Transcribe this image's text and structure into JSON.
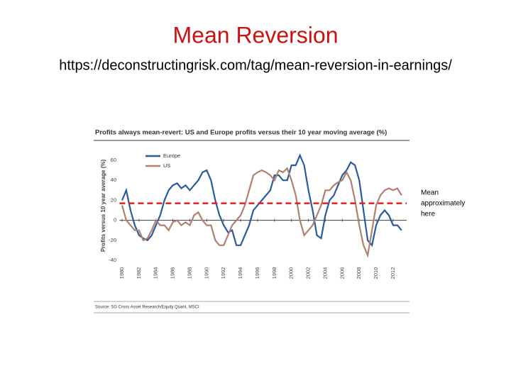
{
  "slide": {
    "title": "Mean Reversion",
    "url": "https://deconstructingrisk.com/tag/mean-reversion-in-earnings/",
    "annotation": [
      "Mean",
      "approximately",
      "here"
    ]
  },
  "chart_data": {
    "type": "line",
    "title": "Profits always mean-revert: US and Europe profits versus their 10 year moving average (%)",
    "y_label": "Profits versus 10 year average (%)",
    "source": "Source: SG Cross Asset Research/Equity Quant, MSCI",
    "x": [
      1980,
      1980.5,
      1981,
      1981.5,
      1982,
      1982.5,
      1983,
      1983.5,
      1984,
      1984.5,
      1985,
      1985.5,
      1986,
      1986.5,
      1987,
      1987.5,
      1988,
      1988.5,
      1989,
      1989.5,
      1990,
      1990.5,
      1991,
      1991.5,
      1992,
      1992.5,
      1993,
      1993.5,
      1994,
      1994.5,
      1995,
      1995.5,
      1996,
      1996.5,
      1997,
      1997.5,
      1998,
      1998.5,
      1999,
      1999.5,
      2000,
      2000.5,
      2001,
      2001.5,
      2002,
      2002.5,
      2003,
      2003.5,
      2004,
      2004.5,
      2005,
      2005.5,
      2006,
      2006.5,
      2007,
      2007.5,
      2008,
      2008.5,
      2009,
      2009.5,
      2010,
      2010.5,
      2011,
      2011.5,
      2012,
      2012.5,
      2013
    ],
    "series": [
      {
        "name": "Europe",
        "color": "#2a5b9a",
        "values": [
          20,
          30,
          10,
          -5,
          -15,
          -18,
          -20,
          -15,
          -5,
          5,
          20,
          30,
          35,
          37,
          32,
          35,
          30,
          35,
          40,
          48,
          50,
          40,
          20,
          5,
          -5,
          -12,
          -10,
          -25,
          -25,
          -15,
          -5,
          10,
          15,
          20,
          25,
          30,
          45,
          45,
          40,
          40,
          55,
          55,
          65,
          55,
          30,
          10,
          -15,
          -18,
          5,
          20,
          25,
          35,
          45,
          50,
          58,
          55,
          40,
          10,
          -20,
          -25,
          -5,
          5,
          10,
          5,
          -5,
          -5,
          -10
        ]
      },
      {
        "name": "US",
        "color": "#b08070",
        "values": [
          15,
          0,
          -5,
          -10,
          -10,
          -20,
          -18,
          -10,
          0,
          -5,
          -5,
          -10,
          -2,
          0,
          -5,
          -2,
          -5,
          5,
          8,
          0,
          -5,
          -5,
          -20,
          -25,
          -25,
          -15,
          -5,
          0,
          5,
          15,
          30,
          45,
          48,
          50,
          48,
          45,
          40,
          50,
          48,
          52,
          40,
          25,
          0,
          -15,
          -10,
          -5,
          5,
          15,
          30,
          30,
          35,
          38,
          40,
          48,
          40,
          20,
          -5,
          -25,
          -35,
          -10,
          15,
          25,
          30,
          32,
          30,
          32,
          25
        ]
      }
    ],
    "xlim": [
      1979.7,
      2013.6
    ],
    "xticks": [
      1980,
      1982,
      1984,
      1986,
      1988,
      1990,
      1992,
      1994,
      1996,
      1998,
      2000,
      2002,
      2004,
      2006,
      2008,
      2010,
      2012
    ],
    "ylim": [
      -42,
      68
    ],
    "yticks": [
      -40,
      -20,
      0,
      20,
      40,
      60
    ],
    "reference_line": {
      "value": 17,
      "color": "#e02020"
    },
    "legend": "upper left"
  }
}
